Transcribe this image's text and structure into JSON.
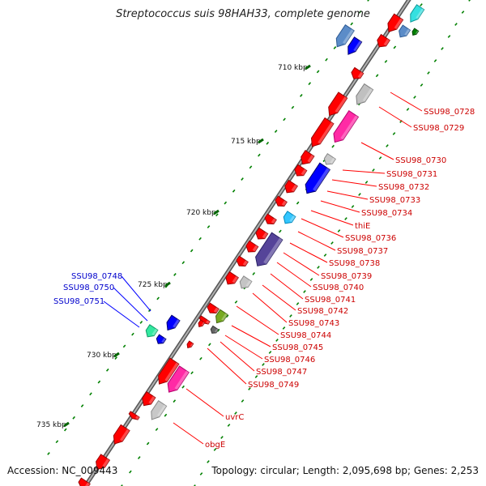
{
  "title": "Streptococcus suis 98HAH33, complete genome",
  "footer": {
    "accession": "Accession: NC_009443",
    "summary": "Topology: circular; Length: 2,095,698 bp; Genes: 2,253"
  },
  "ruler": [
    "710 kbp",
    "715 kbp",
    "720 kbp",
    "725 kbp",
    "730 kbp",
    "735 kbp"
  ],
  "labels_right": [
    "SSU98_0728",
    "SSU98_0729",
    "SSU98_0730",
    "SSU98_0731",
    "SSU98_0732",
    "SSU98_0733",
    "SSU98_0734",
    "thiE",
    "SSU98_0736",
    "SSU98_0737",
    "SSU98_0738",
    "SSU98_0739",
    "SSU98_0740",
    "SSU98_0741",
    "SSU98_0742",
    "SSU98_0743",
    "SSU98_0744",
    "SSU98_0745",
    "SSU98_0746",
    "SSU98_0747",
    "SSU98_0749",
    "uvrC",
    "obgE"
  ],
  "labels_left": [
    "SSU98_0748",
    "SSU98_0750",
    "SSU98_0751"
  ],
  "colors": {
    "forward_gene": "#ff0000",
    "reverse_gene": "#0000ff",
    "label_right": "#cc0000",
    "label_left": "#0000cc",
    "backbone": "#808080",
    "tick": "#008000"
  }
}
